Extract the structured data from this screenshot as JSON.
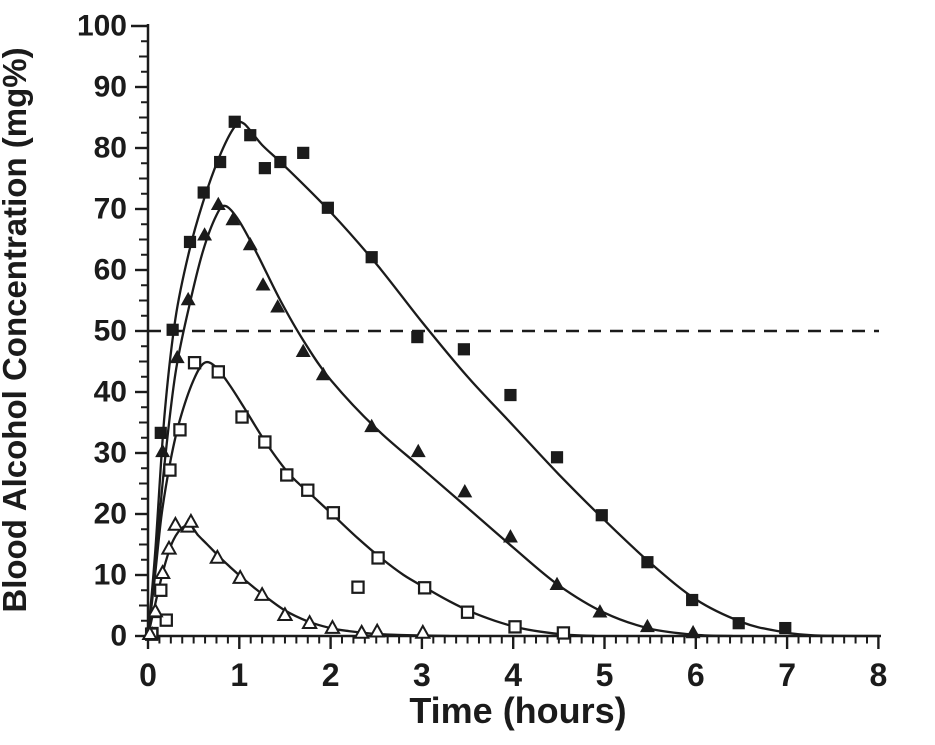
{
  "colors": {
    "ink": "#1b1b1b",
    "background": "#ffffff"
  },
  "chart_data": {
    "type": "scatter",
    "title": "",
    "xlabel": "Time (hours)",
    "ylabel": "Blood Alcohol Concentration (mg%)",
    "xlim": [
      0,
      8
    ],
    "ylim": [
      0,
      100
    ],
    "x_major_ticks": [
      0,
      1,
      2,
      3,
      4,
      5,
      6,
      7,
      8
    ],
    "y_major_ticks": [
      0,
      10,
      20,
      30,
      40,
      50,
      60,
      70,
      80,
      90,
      100
    ],
    "x_minor_step": 0.125,
    "y_minor_step": 2.5,
    "grid": false,
    "legend": "none",
    "reference_line": {
      "y": 50,
      "style": "dashed",
      "color": "#1b1b1b"
    },
    "series": [
      {
        "id": "filled-square",
        "name": "filled squares (highest curve)",
        "marker": "filled-square",
        "points": [
          [
            0.05,
            0.5
          ],
          [
            0.14,
            33.3
          ],
          [
            0.27,
            50.2
          ],
          [
            0.46,
            64.6
          ],
          [
            0.61,
            72.7
          ],
          [
            0.79,
            77.7
          ],
          [
            0.95,
            84.3
          ],
          [
            1.12,
            82.1
          ],
          [
            1.28,
            76.7
          ],
          [
            1.45,
            77.7
          ],
          [
            1.7,
            79.2
          ],
          [
            1.97,
            70.2
          ],
          [
            2.45,
            62.1
          ],
          [
            2.95,
            49.0
          ],
          [
            3.46,
            47.0
          ],
          [
            3.97,
            39.5
          ],
          [
            4.48,
            29.3
          ],
          [
            4.97,
            19.8
          ],
          [
            5.47,
            12.1
          ],
          [
            5.96,
            5.9
          ],
          [
            6.47,
            2.1
          ],
          [
            6.98,
            1.3
          ]
        ],
        "fit_curve": [
          [
            0,
            0
          ],
          [
            0.08,
            14
          ],
          [
            0.18,
            36
          ],
          [
            0.3,
            52
          ],
          [
            0.45,
            63
          ],
          [
            0.6,
            71
          ],
          [
            0.78,
            78.5
          ],
          [
            0.95,
            83.5
          ],
          [
            1.05,
            84
          ],
          [
            1.25,
            80.5
          ],
          [
            1.5,
            77
          ],
          [
            2.0,
            69.5
          ],
          [
            2.5,
            61
          ],
          [
            3.0,
            51.5
          ],
          [
            3.5,
            42.5
          ],
          [
            4.0,
            34.5
          ],
          [
            4.5,
            26.5
          ],
          [
            5.0,
            19
          ],
          [
            5.5,
            12
          ],
          [
            6.0,
            6
          ],
          [
            6.5,
            2.3
          ],
          [
            6.9,
            0.8
          ],
          [
            7.3,
            0.1
          ],
          [
            8,
            0
          ]
        ]
      },
      {
        "id": "filled-triangle",
        "name": "filled triangles (second curve)",
        "marker": "filled-triangle",
        "points": [
          [
            0.05,
            0.3
          ],
          [
            0.08,
            3.8
          ],
          [
            0.16,
            30.2
          ],
          [
            0.32,
            45.6
          ],
          [
            0.44,
            55.1
          ],
          [
            0.62,
            65.7
          ],
          [
            0.77,
            70.7
          ],
          [
            0.93,
            68.2
          ],
          [
            1.12,
            64.1
          ],
          [
            1.26,
            57.5
          ],
          [
            1.42,
            53.9
          ],
          [
            1.7,
            46.6
          ],
          [
            1.92,
            42.8
          ],
          [
            2.45,
            34.3
          ],
          [
            2.96,
            30.2
          ],
          [
            3.47,
            23.6
          ],
          [
            3.97,
            16.2
          ],
          [
            4.48,
            8.4
          ],
          [
            4.95,
            3.9
          ],
          [
            5.47,
            1.5
          ],
          [
            5.97,
            0.5
          ]
        ],
        "fit_curve": [
          [
            0,
            0
          ],
          [
            0.08,
            12
          ],
          [
            0.18,
            28
          ],
          [
            0.3,
            43
          ],
          [
            0.45,
            54
          ],
          [
            0.6,
            63
          ],
          [
            0.75,
            69
          ],
          [
            0.85,
            70.5
          ],
          [
            1.0,
            68
          ],
          [
            1.2,
            62.5
          ],
          [
            1.45,
            55
          ],
          [
            1.7,
            48.5
          ],
          [
            2.0,
            42
          ],
          [
            2.5,
            34
          ],
          [
            3.0,
            27.5
          ],
          [
            3.5,
            21
          ],
          [
            4.0,
            14.5
          ],
          [
            4.5,
            8.3
          ],
          [
            5.0,
            3.8
          ],
          [
            5.5,
            1.2
          ],
          [
            6.0,
            0.2
          ],
          [
            6.4,
            0
          ]
        ]
      },
      {
        "id": "open-square",
        "name": "open squares (third curve)",
        "marker": "open-square",
        "points": [
          [
            0.04,
            0.3
          ],
          [
            0.14,
            7.5
          ],
          [
            0.2,
            2.6
          ],
          [
            0.24,
            27.2
          ],
          [
            0.35,
            33.8
          ],
          [
            0.51,
            44.8
          ],
          [
            0.77,
            43.3
          ],
          [
            1.03,
            35.9
          ],
          [
            1.28,
            31.8
          ],
          [
            1.52,
            26.4
          ],
          [
            1.75,
            23.9
          ],
          [
            2.03,
            20.2
          ],
          [
            2.3,
            8.0
          ],
          [
            2.52,
            12.8
          ],
          [
            3.03,
            7.9
          ],
          [
            3.5,
            3.9
          ],
          [
            4.02,
            1.5
          ],
          [
            4.55,
            0.5
          ]
        ],
        "fit_curve": [
          [
            0,
            0
          ],
          [
            0.07,
            9
          ],
          [
            0.15,
            20
          ],
          [
            0.25,
            29
          ],
          [
            0.35,
            35.5
          ],
          [
            0.5,
            42
          ],
          [
            0.62,
            44.8
          ],
          [
            0.75,
            44
          ],
          [
            0.9,
            41
          ],
          [
            1.05,
            37.5
          ],
          [
            1.3,
            31.5
          ],
          [
            1.55,
            26.5
          ],
          [
            1.8,
            23
          ],
          [
            2.05,
            19.5
          ],
          [
            2.3,
            16
          ],
          [
            2.55,
            12.8
          ],
          [
            2.8,
            10
          ],
          [
            3.05,
            7.8
          ],
          [
            3.3,
            5.7
          ],
          [
            3.55,
            3.9
          ],
          [
            3.8,
            2.5
          ],
          [
            4.05,
            1.4
          ],
          [
            4.3,
            0.7
          ],
          [
            4.6,
            0.2
          ],
          [
            4.9,
            0
          ]
        ]
      },
      {
        "id": "open-triangle",
        "name": "open triangles (lowest curve)",
        "marker": "open-triangle",
        "points": [
          [
            0.02,
            0.3
          ],
          [
            0.08,
            4.0
          ],
          [
            0.16,
            10.3
          ],
          [
            0.23,
            14.3
          ],
          [
            0.3,
            18.2
          ],
          [
            0.44,
            17.9
          ],
          [
            0.47,
            18.7
          ],
          [
            0.76,
            12.8
          ],
          [
            1.01,
            9.5
          ],
          [
            1.25,
            6.7
          ],
          [
            1.5,
            3.4
          ],
          [
            1.77,
            2.1
          ],
          [
            2.02,
            1.3
          ],
          [
            2.34,
            0.5
          ],
          [
            2.51,
            0.7
          ],
          [
            3.01,
            0.5
          ]
        ],
        "fit_curve": [
          [
            0,
            0
          ],
          [
            0.06,
            4
          ],
          [
            0.13,
            8.5
          ],
          [
            0.2,
            12.5
          ],
          [
            0.28,
            15.8
          ],
          [
            0.38,
            17.8
          ],
          [
            0.47,
            18
          ],
          [
            0.55,
            16.5
          ],
          [
            0.65,
            15
          ],
          [
            0.78,
            13
          ],
          [
            0.9,
            11.3
          ],
          [
            1.05,
            9.3
          ],
          [
            1.25,
            6.9
          ],
          [
            1.5,
            4.2
          ],
          [
            1.75,
            2.4
          ],
          [
            2.0,
            1.3
          ],
          [
            2.2,
            0.8
          ],
          [
            2.45,
            0.4
          ],
          [
            2.7,
            0.2
          ],
          [
            3.0,
            0.1
          ],
          [
            3.3,
            0
          ]
        ]
      }
    ]
  }
}
